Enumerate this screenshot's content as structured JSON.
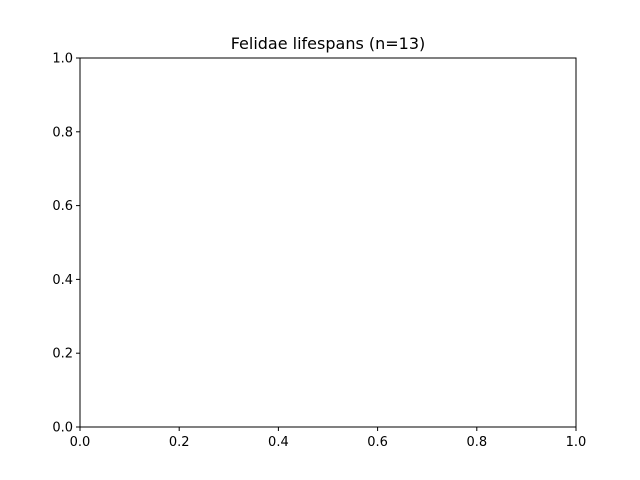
{
  "chart_data": {
    "type": "scatter",
    "title": "Felidae lifespans (n=13)",
    "xlabel": "",
    "ylabel": "",
    "xlim": [
      0.0,
      1.0
    ],
    "ylim": [
      0.0,
      1.0
    ],
    "xticks": [
      0.0,
      0.2,
      0.4,
      0.6,
      0.8,
      1.0
    ],
    "yticks": [
      0.0,
      0.2,
      0.4,
      0.6,
      0.8,
      1.0
    ],
    "xtick_labels": [
      "0.0",
      "0.2",
      "0.4",
      "0.6",
      "0.8",
      "1.0"
    ],
    "ytick_labels": [
      "0.0",
      "0.2",
      "0.4",
      "0.6",
      "0.8",
      "1.0"
    ],
    "series": [],
    "grid": false,
    "legend": "none",
    "colors": {
      "axes": "#000000",
      "background": "#ffffff"
    }
  }
}
